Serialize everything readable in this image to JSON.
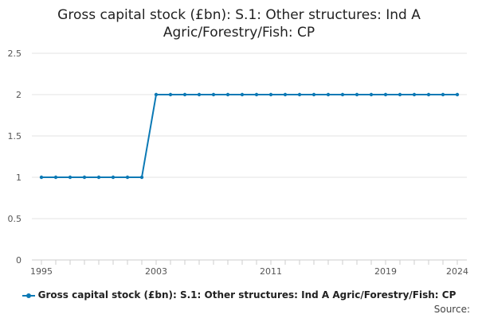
{
  "chart_data": {
    "type": "line",
    "title": "Gross capital stock (£bn): S.1: Other structures: Ind A Agric/Forestry/Fish: CP",
    "xlabel": "",
    "ylabel": "",
    "x": [
      1995,
      1996,
      1997,
      1998,
      1999,
      2000,
      2001,
      2002,
      2003,
      2004,
      2005,
      2006,
      2007,
      2008,
      2009,
      2010,
      2011,
      2012,
      2013,
      2014,
      2015,
      2016,
      2017,
      2018,
      2019,
      2020,
      2021,
      2022,
      2023,
      2024
    ],
    "series": [
      {
        "name": "Gross capital stock (£bn): S.1: Other structures: Ind A Agric/Forestry/Fish: CP",
        "values": [
          1,
          1,
          1,
          1,
          1,
          1,
          1,
          1,
          2,
          2,
          2,
          2,
          2,
          2,
          2,
          2,
          2,
          2,
          2,
          2,
          2,
          2,
          2,
          2,
          2,
          2,
          2,
          2,
          2,
          2
        ]
      }
    ],
    "xlim": [
      1995,
      2024
    ],
    "ylim": [
      0,
      2.5
    ],
    "x_ticks": [
      "1995",
      "2003",
      "2011",
      "2019",
      "2024"
    ],
    "y_ticks": [
      "0",
      "0.5",
      "1",
      "1.5",
      "2",
      "2.5"
    ],
    "grid": true,
    "legend_position": "bottom",
    "series_color": "#0b79b5",
    "source_label": "Source:"
  }
}
